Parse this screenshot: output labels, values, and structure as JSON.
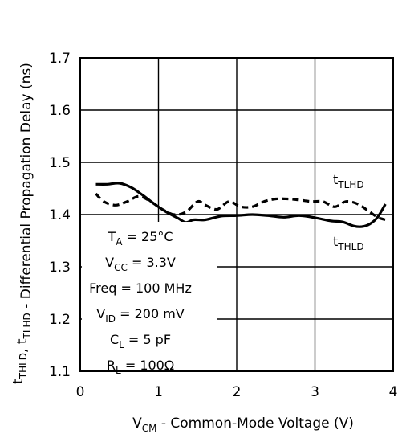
{
  "chart_data": {
    "type": "line",
    "xlabel": {
      "main": "V",
      "sub": "CM",
      "rest": " - Common-Mode Voltage (V)"
    },
    "ylabel": {
      "parts": [
        {
          "t": "t",
          "sub": "THLD"
        },
        {
          "t": ", t",
          "sub": "TLHD"
        },
        {
          "t": " - Differential Propagation Delay (ns)"
        }
      ]
    },
    "xlim": [
      0,
      4
    ],
    "ylim": [
      1.1,
      1.7
    ],
    "xticks": [
      0,
      1,
      2,
      3,
      4
    ],
    "xtick_labels": [
      "0",
      "1",
      "2",
      "3",
      "4"
    ],
    "yticks": [
      1.1,
      1.2,
      1.3,
      1.4,
      1.5,
      1.6,
      1.7
    ],
    "ytick_labels": [
      "1.1",
      "1.2",
      "1.3",
      "1.4",
      "1.5",
      "1.6",
      "1.7"
    ],
    "grid": true,
    "series": [
      {
        "name": {
          "main": "t",
          "sub": "TLHD"
        },
        "style": "dashed",
        "color": "#000000",
        "x": [
          0.2,
          0.3,
          0.45,
          0.6,
          0.75,
          0.9,
          1.05,
          1.2,
          1.35,
          1.5,
          1.6,
          1.75,
          1.9,
          2.05,
          2.2,
          2.35,
          2.5,
          2.65,
          2.8,
          2.95,
          3.1,
          3.25,
          3.4,
          3.55,
          3.7,
          3.8,
          3.9
        ],
        "y": [
          1.44,
          1.425,
          1.418,
          1.425,
          1.435,
          1.425,
          1.41,
          1.4,
          1.405,
          1.425,
          1.418,
          1.41,
          1.425,
          1.415,
          1.415,
          1.425,
          1.43,
          1.43,
          1.428,
          1.425,
          1.425,
          1.415,
          1.425,
          1.42,
          1.405,
          1.395,
          1.39
        ]
      },
      {
        "name": {
          "main": "t",
          "sub": "THLD"
        },
        "style": "solid",
        "color": "#000000",
        "x": [
          0.2,
          0.35,
          0.5,
          0.65,
          0.8,
          0.95,
          1.1,
          1.25,
          1.35,
          1.45,
          1.6,
          1.8,
          2.0,
          2.2,
          2.4,
          2.6,
          2.8,
          3.0,
          3.2,
          3.35,
          3.5,
          3.6,
          3.7,
          3.8,
          3.9
        ],
        "y": [
          1.458,
          1.458,
          1.46,
          1.452,
          1.437,
          1.42,
          1.405,
          1.393,
          1.385,
          1.39,
          1.39,
          1.397,
          1.398,
          1.4,
          1.398,
          1.395,
          1.398,
          1.394,
          1.388,
          1.386,
          1.378,
          1.377,
          1.382,
          1.395,
          1.42
        ]
      }
    ],
    "conditions": [
      {
        "main": "T",
        "sub": "A",
        "rest": " = 25°C"
      },
      {
        "main": "V",
        "sub": "CC",
        "rest": " = 3.3V"
      },
      {
        "main": "Freq = 100 MHz",
        "sub": "",
        "rest": ""
      },
      {
        "main": "V",
        "sub": "ID",
        "rest": " = 200 mV"
      },
      {
        "main": "C",
        "sub": "L",
        "rest": " = 5 pF"
      },
      {
        "main": "R",
        "sub": "L",
        "rest": " = 100Ω"
      }
    ]
  }
}
